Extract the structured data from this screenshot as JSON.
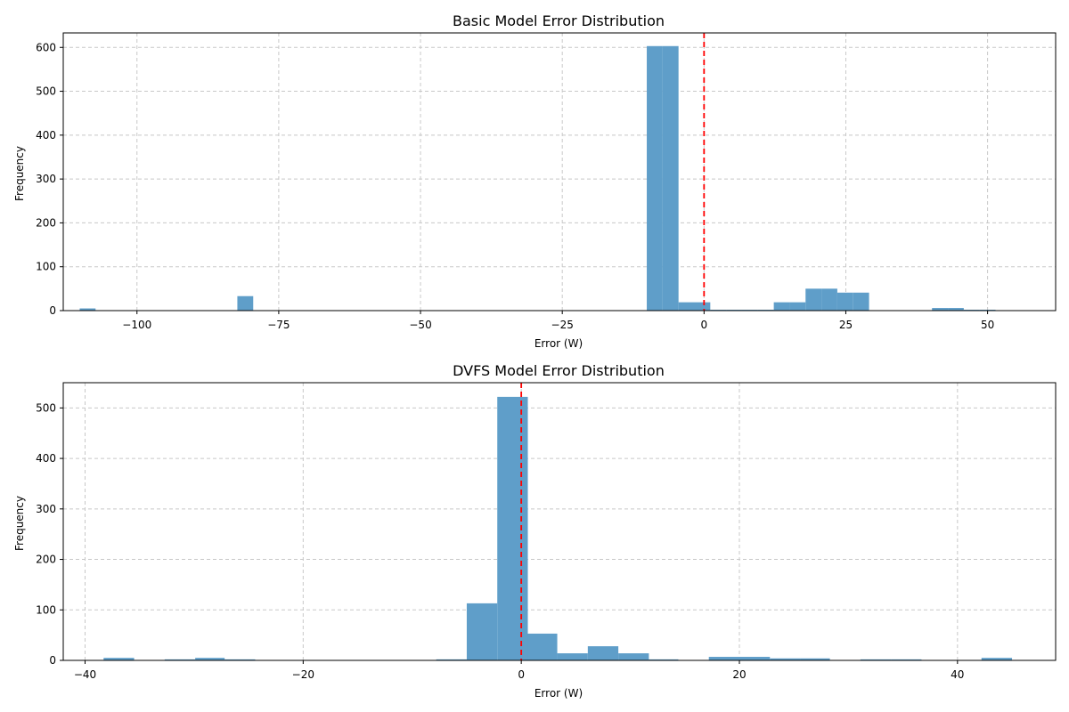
{
  "chart_data": [
    {
      "type": "bar",
      "title": "Basic Model Error Distribution",
      "xlabel": "Error (W)",
      "ylabel": "Frequency",
      "xlim": [
        -113,
        62
      ],
      "ylim": [
        0,
        633
      ],
      "xticks": [
        -100,
        -75,
        -50,
        -25,
        0,
        25,
        50
      ],
      "xtick_labels": [
        "−100",
        "−75",
        "−50",
        "−25",
        "0",
        "25",
        "50"
      ],
      "yticks": [
        0,
        100,
        200,
        300,
        400,
        500,
        600
      ],
      "ytick_labels": [
        "0",
        "100",
        "200",
        "300",
        "400",
        "500",
        "600"
      ],
      "grid": true,
      "bar_color": "#5f9ec9",
      "reference_line": {
        "x": 0,
        "color": "#ff0000",
        "style": "dashed"
      },
      "bins": [
        {
          "x0": -110.1,
          "x1": -107.3,
          "value": 5
        },
        {
          "x0": -82.3,
          "x1": -79.5,
          "value": 33
        },
        {
          "x0": -10.1,
          "x1": -7.3,
          "value": 603
        },
        {
          "x0": -7.3,
          "x1": -4.5,
          "value": 603
        },
        {
          "x0": -4.5,
          "x1": -1.7,
          "value": 19
        },
        {
          "x0": -1.7,
          "x1": 1.1,
          "value": 19
        },
        {
          "x0": 1.1,
          "x1": 3.9,
          "value": 2
        },
        {
          "x0": 3.9,
          "x1": 6.7,
          "value": 2
        },
        {
          "x0": 6.7,
          "x1": 9.5,
          "value": 2
        },
        {
          "x0": 9.5,
          "x1": 12.3,
          "value": 2
        },
        {
          "x0": 12.3,
          "x1": 15.1,
          "value": 19
        },
        {
          "x0": 15.1,
          "x1": 17.9,
          "value": 19
        },
        {
          "x0": 17.9,
          "x1": 20.7,
          "value": 50
        },
        {
          "x0": 20.7,
          "x1": 23.5,
          "value": 50
        },
        {
          "x0": 23.5,
          "x1": 26.3,
          "value": 41
        },
        {
          "x0": 26.3,
          "x1": 29.1,
          "value": 41
        },
        {
          "x0": 40.2,
          "x1": 43.0,
          "value": 6
        },
        {
          "x0": 43.0,
          "x1": 45.8,
          "value": 6
        },
        {
          "x0": 45.8,
          "x1": 48.6,
          "value": 2
        },
        {
          "x0": 48.6,
          "x1": 51.4,
          "value": 2
        }
      ]
    },
    {
      "type": "bar",
      "title": "DVFS Model Error Distribution",
      "xlabel": "Error (W)",
      "ylabel": "Frequency",
      "xlim": [
        -42,
        49
      ],
      "ylim": [
        0,
        550
      ],
      "xticks": [
        -40,
        -20,
        0,
        20,
        40
      ],
      "xtick_labels": [
        "−40",
        "−20",
        "0",
        "20",
        "40"
      ],
      "yticks": [
        0,
        100,
        200,
        300,
        400,
        500
      ],
      "ytick_labels": [
        "0",
        "100",
        "200",
        "300",
        "400",
        "500"
      ],
      "grid": true,
      "bar_color": "#5f9ec9",
      "reference_line": {
        "x": 0,
        "color": "#ff0000",
        "style": "dashed"
      },
      "bins": [
        {
          "x0": -38.3,
          "x1": -35.5,
          "value": 5
        },
        {
          "x0": -32.7,
          "x1": -29.9,
          "value": 2
        },
        {
          "x0": -29.9,
          "x1": -27.2,
          "value": 5
        },
        {
          "x0": -27.2,
          "x1": -24.4,
          "value": 2
        },
        {
          "x0": -7.8,
          "x1": -5.0,
          "value": 2
        },
        {
          "x0": -5.0,
          "x1": -2.2,
          "value": 113
        },
        {
          "x0": -2.2,
          "x1": 0.6,
          "value": 522
        },
        {
          "x0": 0.6,
          "x1": 3.3,
          "value": 53
        },
        {
          "x0": 3.3,
          "x1": 6.1,
          "value": 14
        },
        {
          "x0": 6.1,
          "x1": 8.9,
          "value": 28
        },
        {
          "x0": 8.9,
          "x1": 11.7,
          "value": 14
        },
        {
          "x0": 11.7,
          "x1": 14.4,
          "value": 2
        },
        {
          "x0": 17.2,
          "x1": 20.0,
          "value": 7
        },
        {
          "x0": 20.0,
          "x1": 22.8,
          "value": 7
        },
        {
          "x0": 22.8,
          "x1": 25.6,
          "value": 4
        },
        {
          "x0": 25.6,
          "x1": 28.3,
          "value": 4
        },
        {
          "x0": 31.1,
          "x1": 33.9,
          "value": 2
        },
        {
          "x0": 33.9,
          "x1": 36.7,
          "value": 2
        },
        {
          "x0": 42.2,
          "x1": 45.0,
          "value": 5
        }
      ]
    }
  ]
}
